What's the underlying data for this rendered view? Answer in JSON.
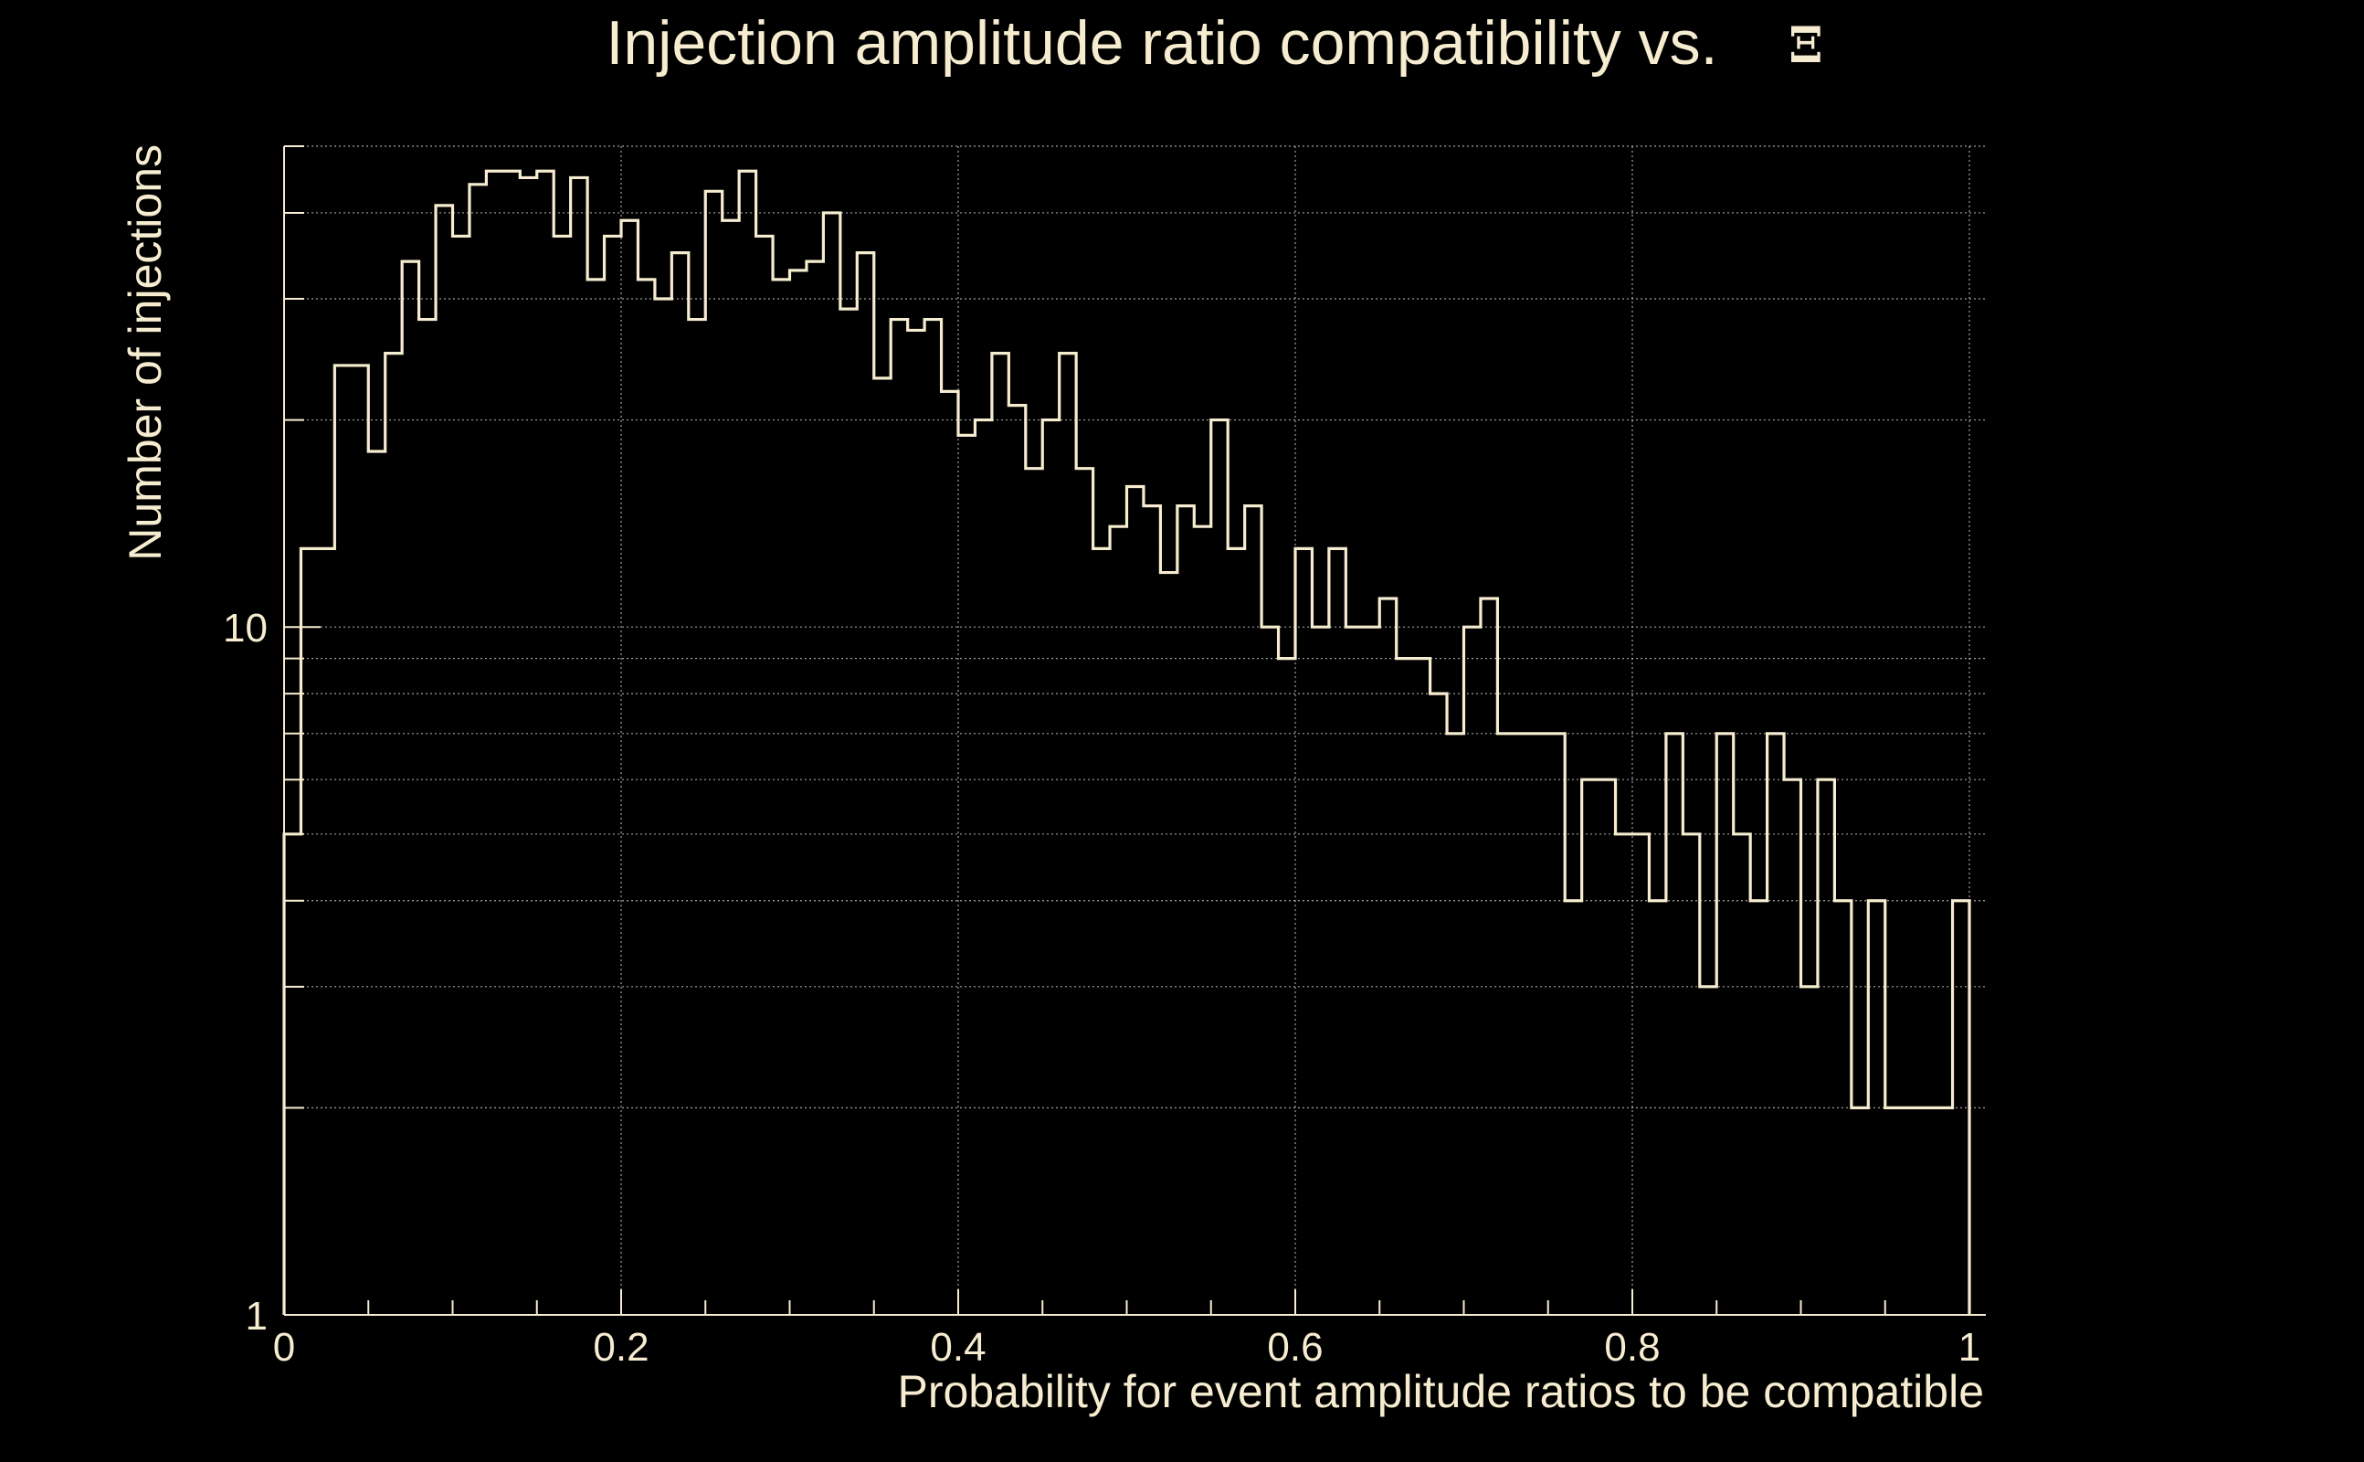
{
  "colors": {
    "background": "#000000",
    "foreground": "#f6ecd0",
    "grid": "#c8c8c8"
  },
  "chart_data": {
    "type": "histogram",
    "title": "Injection amplitude ratio compatibility vs.",
    "title_symbol": "Ξ",
    "xlabel": "Probability for event amplitude ratios to be compatible",
    "ylabel": "Number of injections",
    "xlim": [
      0,
      1
    ],
    "ylim": [
      1,
      50
    ],
    "y_scale": "log",
    "grid": true,
    "x_ticks": [
      0,
      0.2,
      0.4,
      0.6,
      0.8,
      1
    ],
    "x_tick_labels": [
      "0",
      "0.2",
      "0.4",
      "0.6",
      "0.8",
      "1"
    ],
    "y_ticks": [
      1,
      10
    ],
    "y_tick_labels": [
      "1",
      "10"
    ],
    "bin_width": 0.01,
    "values": [
      5,
      13,
      13,
      24,
      24,
      18,
      25,
      34,
      28,
      41,
      37,
      44,
      46,
      46,
      45,
      46,
      37,
      45,
      32,
      37,
      39,
      32,
      30,
      35,
      28,
      43,
      39,
      46,
      37,
      32,
      33,
      34,
      40,
      29,
      35,
      23,
      28,
      27,
      28,
      22,
      19,
      20,
      25,
      21,
      17,
      20,
      25,
      17,
      13,
      14,
      16,
      15,
      12,
      15,
      14,
      20,
      13,
      15,
      10,
      9,
      13,
      10,
      13,
      10,
      10,
      11,
      9,
      9,
      8,
      7,
      10,
      11,
      7,
      7,
      7,
      7,
      4,
      6,
      6,
      5,
      5,
      4,
      7,
      5,
      3,
      7,
      5,
      4,
      7,
      6,
      3,
      6,
      4,
      2,
      4,
      2,
      2,
      2,
      2,
      4
    ]
  }
}
